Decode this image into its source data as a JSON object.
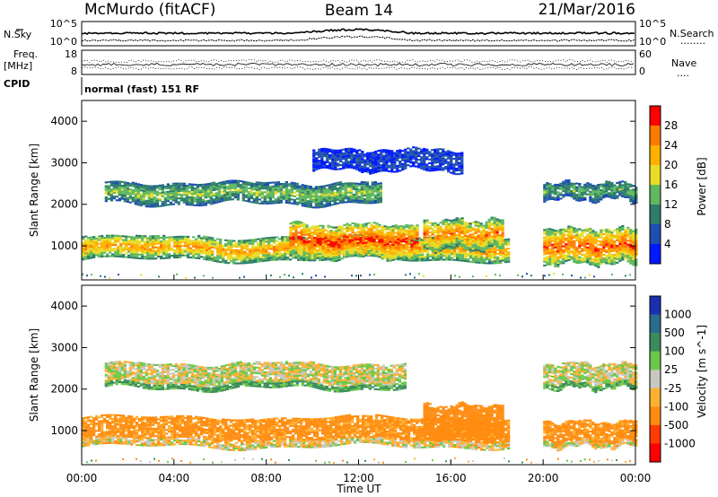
{
  "header": {
    "title_left": "McMurdo (fitACF)",
    "title_center": "Beam 14",
    "title_right": "21/Mar/2016"
  },
  "panels": {
    "nsky_label": "N.Sky",
    "nsearch_label": "N.Search",
    "nsearch_dots": "........",
    "noise_ticks_left": [
      "10^5",
      "10^0"
    ],
    "noise_ticks_right": [
      "10^5",
      "10^0"
    ],
    "freq_label": "Freq.",
    "freq_unit": "[MHz]",
    "freq_ticks": [
      "18",
      "8"
    ],
    "nave_label": "Nave",
    "nave_dots": "....",
    "nave_ticks": [
      "60",
      "0"
    ],
    "cpid_label": "CPID",
    "cpid_text": "normal (fast) 151 RF"
  },
  "axes": {
    "ylabel": "Slant Range [km]",
    "xlabel": "Time UT",
    "yticks": [
      "4000",
      "3000",
      "2000",
      "1000"
    ],
    "xticks": [
      "00:00",
      "04:00",
      "08:00",
      "12:00",
      "16:00",
      "20:00",
      "00:00"
    ]
  },
  "colorbars": {
    "power": {
      "label": "Power [dB]",
      "ticks": [
        "28",
        "24",
        "20",
        "16",
        "12",
        "8",
        "4"
      ],
      "colors": [
        "#ff0000",
        "#ff7a00",
        "#ffb000",
        "#e8dc28",
        "#5fb85f",
        "#2e7d6a",
        "#1e4fb0",
        "#0018ff"
      ]
    },
    "velocity": {
      "label": "Velocity [m s^-1]",
      "ticks": [
        "1000",
        "500",
        "100",
        "25",
        "-25",
        "-100",
        "-500",
        "-1000"
      ],
      "colors": [
        "#1a30b0",
        "#2a6c8c",
        "#3a8c5c",
        "#6cc84a",
        "#c8c8c0",
        "#ffb030",
        "#ff8c10",
        "#ff3c00",
        "#ff0000"
      ]
    }
  },
  "chart_data": [
    {
      "type": "heatmap",
      "title": "Beam 14",
      "xlabel": "Time UT",
      "ylabel": "Slant Range [km]",
      "colorbar_label": "Power [dB]",
      "xlim": [
        0,
        24
      ],
      "ylim": [
        180,
        4500
      ],
      "x_unit": "hours UT",
      "clim": [
        0,
        32
      ],
      "blobs": [
        {
          "t0": 0.0,
          "t1": 18.5,
          "r0": 650,
          "r1": 1200,
          "level": 24
        },
        {
          "t0": 9.0,
          "t1": 14.5,
          "r0": 700,
          "r1": 1500,
          "level": 30
        },
        {
          "t0": 1.0,
          "t1": 13.0,
          "r0": 2000,
          "r1": 2500,
          "level": 16
        },
        {
          "t0": 14.8,
          "t1": 18.2,
          "r0": 900,
          "r1": 1600,
          "level": 26
        },
        {
          "t0": 20.0,
          "t1": 24.0,
          "r0": 550,
          "r1": 1400,
          "level": 28
        },
        {
          "t0": 20.0,
          "t1": 24.0,
          "r0": 2100,
          "r1": 2500,
          "level": 14
        },
        {
          "t0": 10.0,
          "t1": 16.5,
          "r0": 2800,
          "r1": 3300,
          "level": 6
        }
      ]
    },
    {
      "type": "heatmap",
      "title": "Beam 14",
      "xlabel": "Time UT",
      "ylabel": "Slant Range [km]",
      "colorbar_label": "Velocity [m s^-1]",
      "xlim": [
        0,
        24
      ],
      "ylim": [
        180,
        4500
      ],
      "x_unit": "hours UT",
      "clim": [
        -1000,
        1000
      ],
      "blobs": [
        {
          "t0": 0.0,
          "t1": 18.5,
          "r0": 600,
          "r1": 1300,
          "level": -150
        },
        {
          "t0": 1.0,
          "t1": 14.0,
          "r0": 2000,
          "r1": 2600,
          "level": 0
        },
        {
          "t0": 14.8,
          "t1": 18.3,
          "r0": 800,
          "r1": 1600,
          "level": -300
        },
        {
          "t0": 20.0,
          "t1": 24.0,
          "r0": 600,
          "r1": 1200,
          "level": -150
        },
        {
          "t0": 20.0,
          "t1": 24.0,
          "r0": 2000,
          "r1": 2600,
          "level": 0
        }
      ]
    }
  ]
}
